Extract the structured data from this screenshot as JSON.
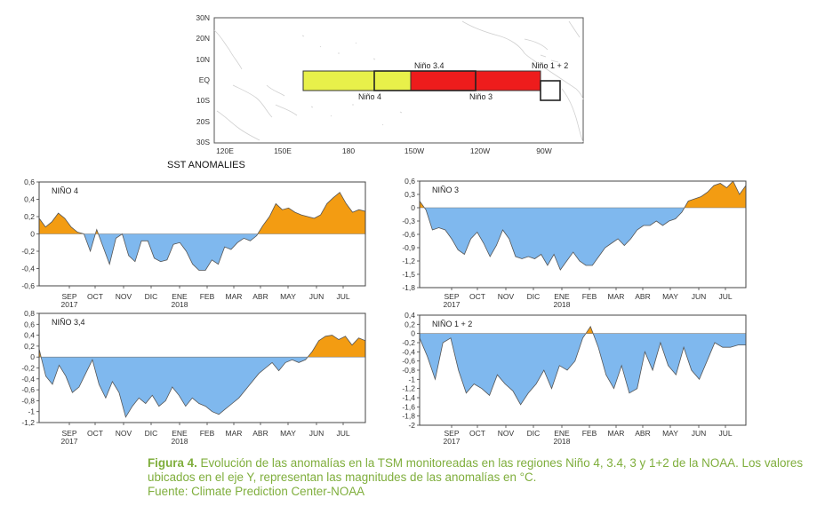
{
  "colors": {
    "warm": "#f39c12",
    "cool": "#7fb8ee",
    "plot_line": "#555555",
    "nino4_box": "#e8f04a",
    "nino3_box": "#ee1c1c",
    "caption": "#7fae3c"
  },
  "map": {
    "lat_labels": [
      "30N",
      "20N",
      "10N",
      "EQ",
      "10S",
      "20S",
      "30S"
    ],
    "lon_labels": [
      "120E",
      "150E",
      "180",
      "150W",
      "120W",
      "90W"
    ],
    "regions": [
      {
        "name": "nino4",
        "label": "Niño 4"
      },
      {
        "name": "nino34",
        "label": "Niño 3.4"
      },
      {
        "name": "nino3",
        "label": "Niño 3"
      },
      {
        "name": "nino12",
        "label": "Niño 1 + 2"
      }
    ]
  },
  "sst_title": "SST ANOMALIES",
  "caption": {
    "label": "Figura 4.",
    "text": " Evolución de las anomalías en la TSM monitoreadas en las regiones Niño 4, 3.4, 3 y 1+2 de la NOAA. Los valores ubicados en el eje Y, representan las magnitudes de las anomalías en °C.",
    "source": "Fuente: Climate Prediction Center-NOAA"
  },
  "chart_data": [
    {
      "type": "area",
      "id": "nino4",
      "title": "NIÑO 4",
      "ylim": [
        -0.6,
        0.6
      ],
      "yticks": [
        "0,6",
        "0,4",
        "0,2",
        "0",
        "-0,2",
        "-0,4",
        "-0,6"
      ],
      "ytick_values": [
        0.6,
        0.4,
        0.2,
        0,
        -0.2,
        -0.4,
        -0.6
      ],
      "xticks": [
        "SEP",
        "OCT",
        "NOV",
        "DIC",
        "ENE",
        "FEB",
        "MAR",
        "ABR",
        "MAY",
        "JUN",
        "JUL"
      ],
      "xsub": [
        {
          "at": "SEP",
          "label": "2017"
        },
        {
          "at": "ENE",
          "label": "2018"
        }
      ],
      "values": [
        0.18,
        0.08,
        0.14,
        0.24,
        0.18,
        0.08,
        0.02,
        0.0,
        -0.2,
        0.05,
        -0.15,
        -0.35,
        -0.05,
        0.0,
        -0.25,
        -0.32,
        -0.08,
        -0.08,
        -0.28,
        -0.32,
        -0.3,
        -0.12,
        -0.1,
        -0.2,
        -0.35,
        -0.42,
        -0.42,
        -0.3,
        -0.35,
        -0.15,
        -0.18,
        -0.1,
        -0.05,
        -0.08,
        -0.02,
        0.1,
        0.2,
        0.35,
        0.28,
        0.3,
        0.25,
        0.22,
        0.2,
        0.18,
        0.22,
        0.35,
        0.42,
        0.48,
        0.35,
        0.25,
        0.28,
        0.26
      ]
    },
    {
      "type": "area",
      "id": "nino3",
      "title": "NIÑO 3",
      "ylim": [
        -1.8,
        0.6
      ],
      "yticks": [
        "0,6",
        "0,3",
        "0",
        "-0,3",
        "-0,6",
        "-0,9",
        "-1,2",
        "-1,5",
        "-1,8"
      ],
      "ytick_values": [
        0.6,
        0.3,
        0,
        -0.3,
        -0.6,
        -0.9,
        -1.2,
        -1.5,
        -1.8
      ],
      "xticks": [
        "SEP",
        "OCT",
        "NOV",
        "DIC",
        "ENE",
        "FEB",
        "MAR",
        "ABR",
        "MAY",
        "JUN",
        "JUL"
      ],
      "xsub": [
        {
          "at": "SEP",
          "label": "2017"
        },
        {
          "at": "ENE",
          "label": "2018"
        }
      ],
      "values": [
        0.15,
        -0.05,
        -0.5,
        -0.45,
        -0.5,
        -0.7,
        -0.95,
        -1.05,
        -0.7,
        -0.55,
        -0.8,
        -1.1,
        -0.85,
        -0.5,
        -0.7,
        -1.1,
        -1.15,
        -1.1,
        -1.15,
        -1.05,
        -1.3,
        -1.05,
        -1.4,
        -1.2,
        -1.0,
        -1.2,
        -1.3,
        -1.3,
        -1.1,
        -0.9,
        -0.8,
        -0.7,
        -0.85,
        -0.7,
        -0.5,
        -0.4,
        -0.4,
        -0.3,
        -0.4,
        -0.3,
        -0.25,
        -0.1,
        0.15,
        0.2,
        0.25,
        0.35,
        0.5,
        0.55,
        0.45,
        0.6,
        0.3,
        0.5
      ]
    },
    {
      "type": "area",
      "id": "nino34",
      "title": "NIÑO 3,4",
      "ylim": [
        -1.2,
        0.8
      ],
      "yticks": [
        "0,8",
        "0,6",
        "0,4",
        "0,2",
        "0",
        "-0,2",
        "-0,4",
        "-0,6",
        "-0,8",
        "-1",
        "-1,2"
      ],
      "ytick_values": [
        0.8,
        0.6,
        0.4,
        0.2,
        0,
        -0.2,
        -0.4,
        -0.6,
        -0.8,
        -1,
        -1.2
      ],
      "xticks": [
        "SEP",
        "OCT",
        "NOV",
        "DIC",
        "ENE",
        "FEB",
        "MAR",
        "ABR",
        "MAY",
        "JUN",
        "JUL"
      ],
      "xsub": [
        {
          "at": "SEP",
          "label": "2017"
        },
        {
          "at": "ENE",
          "label": "2018"
        }
      ],
      "values": [
        0.15,
        -0.35,
        -0.5,
        -0.15,
        -0.35,
        -0.65,
        -0.55,
        -0.3,
        -0.05,
        -0.5,
        -0.75,
        -0.45,
        -0.65,
        -1.1,
        -0.9,
        -0.75,
        -0.85,
        -0.7,
        -0.9,
        -0.8,
        -0.55,
        -0.7,
        -0.9,
        -0.75,
        -0.85,
        -0.9,
        -1.0,
        -1.05,
        -0.95,
        -0.85,
        -0.75,
        -0.6,
        -0.45,
        -0.3,
        -0.2,
        -0.1,
        -0.25,
        -0.1,
        -0.05,
        -0.1,
        -0.05,
        0.1,
        0.3,
        0.38,
        0.4,
        0.32,
        0.38,
        0.22,
        0.35,
        0.3
      ]
    },
    {
      "type": "area",
      "id": "nino12",
      "title": "NIÑO 1 + 2",
      "ylim": [
        -2.0,
        0.4
      ],
      "yticks": [
        "0,4",
        "0,2",
        "0",
        "-0,2",
        "-0,4",
        "-0,6",
        "-0,8",
        "-1",
        "-1,2",
        "-1,4",
        "-1,6",
        "-1,8",
        "-2"
      ],
      "ytick_values": [
        0.4,
        0.2,
        0,
        -0.2,
        -0.4,
        -0.6,
        -0.8,
        -1,
        -1.2,
        -1.4,
        -1.6,
        -1.8,
        -2
      ],
      "xticks": [
        "SEP",
        "OCT",
        "NOV",
        "DIC",
        "ENE",
        "FEB",
        "MAR",
        "ABR",
        "MAY",
        "JUN",
        "JUL"
      ],
      "xsub": [
        {
          "at": "SEP",
          "label": "2017"
        },
        {
          "at": "ENE",
          "label": "2018"
        }
      ],
      "values": [
        -0.1,
        -0.5,
        -1.0,
        -0.2,
        -0.1,
        -0.8,
        -1.3,
        -1.1,
        -1.2,
        -1.35,
        -0.9,
        -1.1,
        -1.25,
        -1.55,
        -1.3,
        -1.1,
        -0.8,
        -1.2,
        -0.7,
        -0.8,
        -0.6,
        -0.1,
        0.15,
        -0.3,
        -0.9,
        -1.2,
        -0.7,
        -1.3,
        -1.2,
        -0.4,
        -0.8,
        -0.2,
        -0.7,
        -0.9,
        -0.3,
        -0.8,
        -1.0,
        -0.6,
        -0.2,
        -0.3,
        -0.3,
        -0.25,
        -0.25
      ]
    }
  ]
}
